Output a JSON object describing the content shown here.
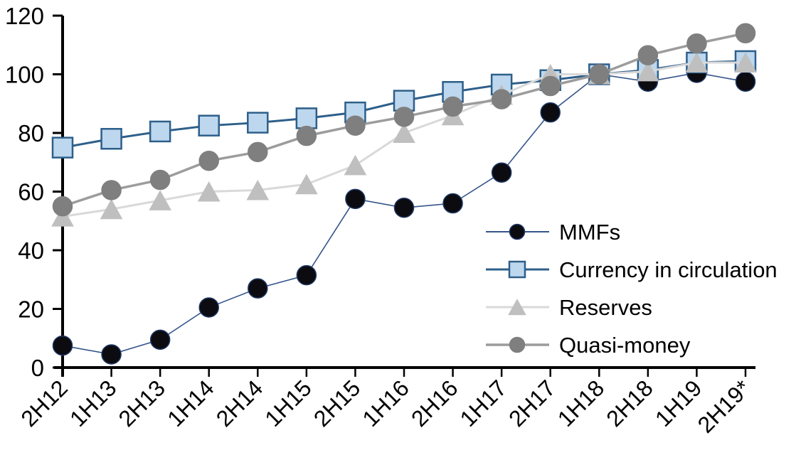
{
  "chart_data": {
    "type": "line",
    "title": "",
    "xlabel": "",
    "ylabel": "",
    "categories": [
      "2H12",
      "1H13",
      "2H13",
      "1H14",
      "2H14",
      "1H15",
      "2H15",
      "1H16",
      "2H16",
      "1H17",
      "2H17",
      "1H18",
      "2H18",
      "1H19",
      "2H19*"
    ],
    "series": [
      {
        "name": "MMFs",
        "marker": "circle",
        "marker_fill": "#0b0b10",
        "marker_stroke": "#1F3864",
        "line_color": "#35558A",
        "line_width": 1.6,
        "values": [
          7.5,
          4.5,
          9.5,
          20.5,
          27,
          31.5,
          57.5,
          54.5,
          56,
          66.5,
          87,
          100,
          97.5,
          100.5,
          97.5
        ]
      },
      {
        "name": "Currency in circulation",
        "marker": "square",
        "marker_fill": "#BDD7EE",
        "marker_stroke": "#2E5F8A",
        "line_color": "#2E5F8A",
        "line_width": 3,
        "values": [
          75,
          78,
          80.5,
          82.5,
          83.5,
          85,
          87,
          91,
          94,
          96.5,
          98,
          100,
          101.5,
          104,
          104.5
        ]
      },
      {
        "name": "Reserves",
        "marker": "triangle",
        "marker_fill": "#BFBFBF",
        "marker_stroke": "#BFBFBF",
        "line_color": "#D9D9D9",
        "line_width": 3,
        "values": [
          51.5,
          54,
          57,
          60,
          60.5,
          62.5,
          69,
          80,
          86,
          93,
          100,
          100,
          101,
          104,
          104
        ]
      },
      {
        "name": "Quasi-money",
        "marker": "circle",
        "marker_fill": "#7F7F7F",
        "marker_stroke": "#7F7F7F",
        "line_color": "#9C9C9C",
        "line_width": 3.5,
        "values": [
          55,
          60.5,
          64,
          70.5,
          73.5,
          79,
          82.5,
          85.5,
          89,
          91.5,
          96,
          100,
          106.5,
          110.5,
          114
        ]
      }
    ],
    "ylim": [
      0,
      120
    ],
    "ytick_step": 20,
    "yticks": [
      "0",
      "20",
      "40",
      "60",
      "80",
      "100",
      "120"
    ],
    "legend": {
      "position": "inside-right",
      "entries": [
        "MMFs",
        "Currency in circulation",
        "Reserves",
        "Quasi-money"
      ]
    },
    "grid": false,
    "axis_color": "#000000",
    "background_color": "#FFFFFF"
  }
}
